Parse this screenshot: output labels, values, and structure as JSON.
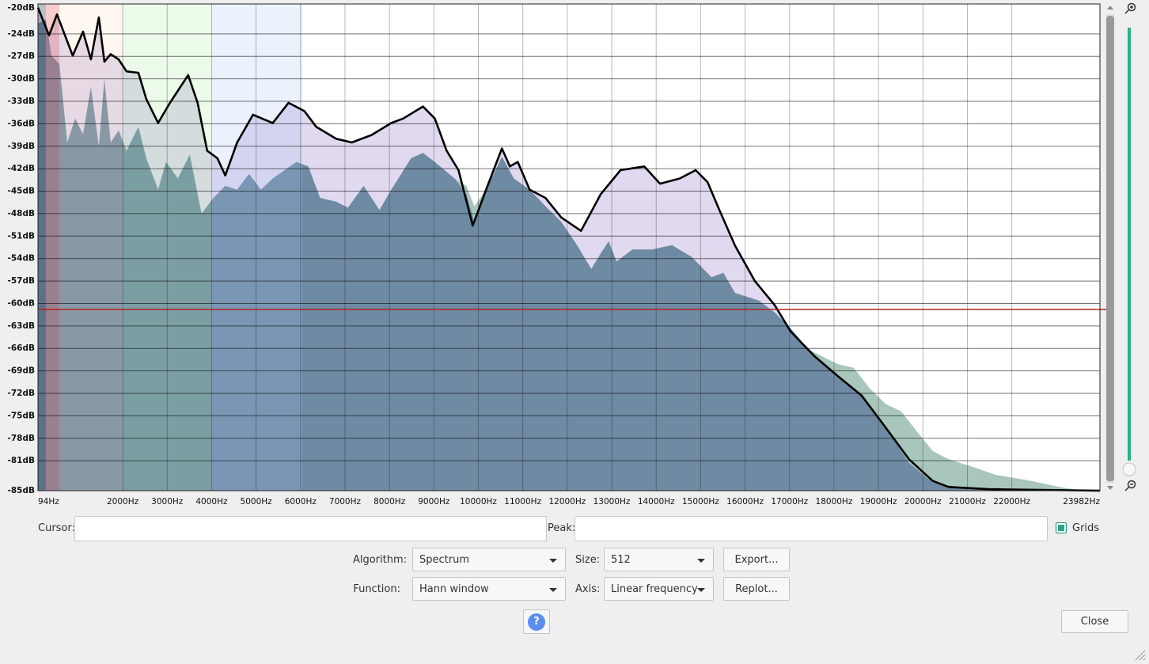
{
  "plot": {
    "type": "area",
    "series": [
      {
        "color": "#dcd2ec",
        "x": [
          94,
          343,
          521,
          876,
          1107,
          1285,
          1463,
          1587,
          1730,
          1908,
          2085,
          2352,
          2530,
          2796,
          3063,
          3472,
          3685,
          3899,
          4130,
          4308,
          4575,
          4930,
          5375,
          5730,
          6086,
          6352,
          6797,
          7153,
          7597,
          8042,
          8308,
          8753,
          9020,
          9286,
          9553,
          9873,
          10175,
          10530,
          10708,
          10886,
          11153,
          11509,
          11864,
          12309,
          12753,
          13198,
          13731,
          14087,
          14531,
          14887,
          15157,
          15420,
          15776,
          16220,
          16665,
          17020,
          17554,
          18087,
          18620,
          19154,
          19687,
          20220,
          20577,
          21466,
          23982
        ],
        "values": [
          -20.5,
          -24.2,
          -21.4,
          -26.9,
          -23.7,
          -27.4,
          -21.8,
          -27.7,
          -26.7,
          -27.4,
          -29.0,
          -29.2,
          -32.7,
          -35.9,
          -33.2,
          -29.5,
          -33.2,
          -39.6,
          -40.6,
          -42.9,
          -38.5,
          -34.8,
          -35.9,
          -33.2,
          -34.3,
          -36.4,
          -38.0,
          -38.5,
          -37.5,
          -35.9,
          -35.3,
          -33.7,
          -35.3,
          -39.6,
          -42.2,
          -49.6,
          -44.8,
          -39.3,
          -41.7,
          -41.1,
          -44.8,
          -45.9,
          -48.5,
          -50.3,
          -45.4,
          -42.2,
          -41.7,
          -44.0,
          -43.3,
          -42.2,
          -43.8,
          -47.5,
          -52.3,
          -57.0,
          -60.2,
          -63.7,
          -67.0,
          -69.7,
          -72.3,
          -76.5,
          -80.8,
          -83.7,
          -84.5,
          -84.8,
          -85.0
        ]
      },
      {
        "color": "#a8c6bb",
        "x": [
          9464,
          9731,
          9909,
          10175,
          10530,
          10797,
          11153,
          11509,
          11864,
          12220,
          12540,
          12753,
          12931,
          13109,
          13465,
          13909,
          14354,
          14798,
          15243,
          15510,
          15776,
          16309,
          16665,
          17020,
          17376,
          18087,
          18442,
          18798,
          19154,
          19509,
          19865,
          20220,
          20577,
          21110,
          21643,
          22355,
          23066,
          23599
        ],
        "values": [
          -43.3,
          -44.3,
          -47.0,
          -44.8,
          -40.4,
          -43.3,
          -44.8,
          -47.0,
          -49.1,
          -52.2,
          -55.4,
          -53.3,
          -51.7,
          -54.4,
          -52.8,
          -52.8,
          -52.2,
          -53.8,
          -56.5,
          -55.9,
          -58.6,
          -59.6,
          -61.2,
          -63.3,
          -66.0,
          -68.1,
          -68.6,
          -71.3,
          -73.4,
          -74.4,
          -77.1,
          -79.7,
          -80.8,
          -81.8,
          -82.9,
          -83.6,
          -84.5,
          -85.0
        ]
      },
      {
        "color": "#6f8aa3",
        "x": [
          94,
          272,
          396,
          574,
          752,
          930,
          1107,
          1285,
          1463,
          1587,
          1730,
          1908,
          2085,
          2352,
          2530,
          2796,
          2974,
          3241,
          3508,
          3774,
          4041,
          4308,
          4575,
          4841,
          5108,
          5375,
          5641,
          5908,
          6175,
          6441,
          6797,
          7064,
          7419,
          7775,
          8042,
          8486,
          8753,
          9020,
          9464,
          9731,
          9909,
          10175,
          10530,
          10797,
          11153,
          11509,
          11864,
          12220,
          12540,
          12753,
          12931,
          13109,
          13465,
          13909,
          14354,
          14798,
          15243,
          15510,
          15776,
          16309,
          16665,
          17020,
          17554,
          18087,
          18620,
          19154,
          19687,
          20220,
          20932,
          23982
        ],
        "values": [
          -22.6,
          -22.1,
          -26.9,
          -28.0,
          -38.5,
          -35.3,
          -37.4,
          -31.1,
          -39.0,
          -30.0,
          -38.5,
          -36.9,
          -39.6,
          -36.4,
          -40.6,
          -44.8,
          -41.1,
          -43.3,
          -40.1,
          -48.0,
          -45.9,
          -44.3,
          -44.8,
          -42.7,
          -44.8,
          -43.3,
          -42.2,
          -41.1,
          -41.7,
          -45.9,
          -46.4,
          -47.2,
          -44.3,
          -47.5,
          -44.8,
          -40.6,
          -39.9,
          -41.1,
          -43.3,
          -45.4,
          -49.1,
          -44.8,
          -40.4,
          -43.3,
          -44.8,
          -47.0,
          -49.1,
          -52.2,
          -55.4,
          -53.3,
          -51.7,
          -54.4,
          -52.8,
          -52.8,
          -52.2,
          -53.8,
          -56.5,
          -55.9,
          -58.6,
          -59.6,
          -61.2,
          -63.3,
          -67.0,
          -69.7,
          -72.3,
          -76.5,
          -81.3,
          -83.9,
          -84.7,
          -85.0
        ]
      }
    ],
    "outline_color": "#000000",
    "xlim": [
      94,
      23982
    ],
    "xticks": [
      {
        "value": 94,
        "label": "94Hz"
      },
      {
        "value": 2000,
        "label": "2000Hz"
      },
      {
        "value": 3000,
        "label": "3000Hz"
      },
      {
        "value": 4000,
        "label": "4000Hz"
      },
      {
        "value": 5000,
        "label": "5000Hz"
      },
      {
        "value": 6000,
        "label": "6000Hz"
      },
      {
        "value": 7000,
        "label": "7000Hz"
      },
      {
        "value": 8000,
        "label": "8000Hz"
      },
      {
        "value": 9000,
        "label": "9000Hz"
      },
      {
        "value": 10000,
        "label": "10000Hz"
      },
      {
        "value": 11000,
        "label": "11000Hz"
      },
      {
        "value": 12000,
        "label": "12000Hz"
      },
      {
        "value": 13000,
        "label": "13000Hz"
      },
      {
        "value": 14000,
        "label": "14000Hz"
      },
      {
        "value": 15000,
        "label": "15000Hz"
      },
      {
        "value": 16000,
        "label": "16000Hz"
      },
      {
        "value": 17000,
        "label": "17000Hz"
      },
      {
        "value": 18000,
        "label": "18000Hz"
      },
      {
        "value": 19000,
        "label": "19000Hz"
      },
      {
        "value": 20000,
        "label": "20000Hz"
      },
      {
        "value": 21000,
        "label": "21000Hz"
      },
      {
        "value": 22000,
        "label": "22000Hz"
      },
      {
        "value": 23982,
        "label": "23982Hz"
      }
    ],
    "ylim": [
      -85,
      -20
    ],
    "yticks": [
      {
        "value": -20,
        "label": "-20dB"
      },
      {
        "value": -24,
        "label": "-24dB"
      },
      {
        "value": -27,
        "label": "-27dB"
      },
      {
        "value": -30,
        "label": "-30dB"
      },
      {
        "value": -33,
        "label": "-33dB"
      },
      {
        "value": -36,
        "label": "-36dB"
      },
      {
        "value": -39,
        "label": "-39dB"
      },
      {
        "value": -42,
        "label": "-42dB"
      },
      {
        "value": -45,
        "label": "-45dB"
      },
      {
        "value": -48,
        "label": "-48dB"
      },
      {
        "value": -51,
        "label": "-51dB"
      },
      {
        "value": -54,
        "label": "-54dB"
      },
      {
        "value": -57,
        "label": "-57dB"
      },
      {
        "value": -60,
        "label": "-60dB"
      },
      {
        "value": -63,
        "label": "-63dB"
      },
      {
        "value": -66,
        "label": "-66dB"
      },
      {
        "value": -69,
        "label": "-69dB"
      },
      {
        "value": -72,
        "label": "-72dB"
      },
      {
        "value": -75,
        "label": "-75dB"
      },
      {
        "value": -78,
        "label": "-78dB"
      },
      {
        "value": -81,
        "label": "-81dB"
      },
      {
        "value": -85,
        "label": "-85dB"
      }
    ],
    "grid": true,
    "hline": {
      "value": -60.8,
      "color": "#b22222"
    }
  },
  "cursor_label": "Cursor:",
  "peak_label": "Peak:",
  "grids": {
    "label": "Grids",
    "checked": true
  },
  "algorithm": {
    "label": "Algorithm:",
    "value": "Spectrum"
  },
  "size": {
    "label": "Size:",
    "value": "512"
  },
  "function": {
    "label": "Function:",
    "value": "Hann window"
  },
  "axis": {
    "label": "Axis:",
    "value": "Linear frequency"
  },
  "buttons": {
    "export": "Export...",
    "replot": "Replot...",
    "help": "?",
    "close": "Close"
  }
}
